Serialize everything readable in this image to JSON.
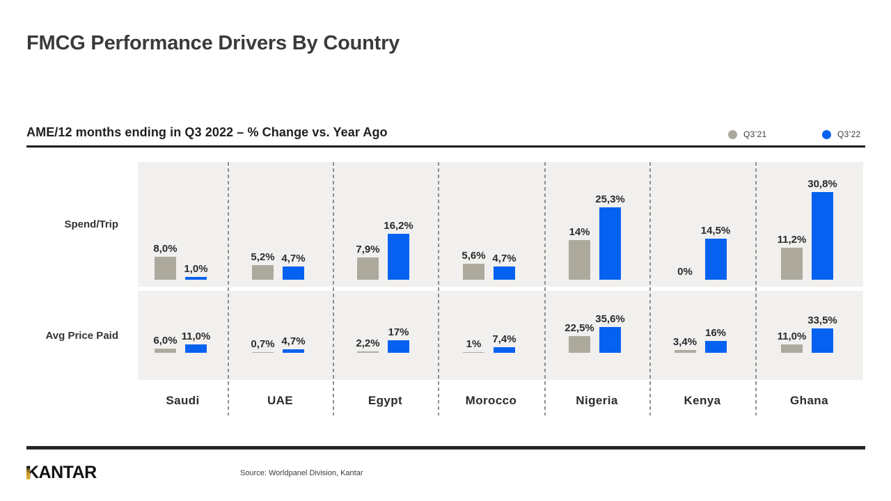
{
  "title": "FMCG Performance Drivers By Country",
  "subtitle": "AME/12 months ending in Q3 2022 – % Change vs. Year Ago",
  "legend": {
    "position": "top-right",
    "items": [
      {
        "name": "Q3’21",
        "color": "#aba89d"
      },
      {
        "name": "Q3’22",
        "color": "#0561f0"
      }
    ]
  },
  "chart_data": {
    "type": "bar",
    "title": "AME/12 months ending in Q3 2022 – % Change vs. Year Ago",
    "unit": "% change vs. year ago",
    "categories": [
      "Saudi",
      "UAE",
      "Egypt",
      "Morocco",
      "Nigeria",
      "Kenya",
      "Ghana"
    ],
    "grid": "dashed-column-separators",
    "legend_position": "top-right",
    "panels": [
      {
        "row_label": "Spend/Trip",
        "series": [
          {
            "name": "Q3’21",
            "color": "#adaa9d",
            "values": [
              8.0,
              5.2,
              7.9,
              5.6,
              14,
              0,
              11.2
            ],
            "value_labels": [
              "8,0%",
              "5,2%",
              "7,9%",
              "5,6%",
              "14%",
              "0%",
              "11,2%"
            ]
          },
          {
            "name": "Q3’22",
            "color": "#0561f0",
            "values": [
              1.0,
              4.7,
              16.2,
              4.7,
              25.3,
              14.5,
              30.8
            ],
            "value_labels": [
              "1,0%",
              "4,7%",
              "16,2%",
              "4,7%",
              "25,3%",
              "14,5%",
              "30,8%"
            ]
          }
        ]
      },
      {
        "row_label": "Avg Price Paid",
        "series": [
          {
            "name": "Q3’21",
            "color": "#adaa9d",
            "values": [
              6.0,
              0.7,
              2.2,
              1,
              22.5,
              3.4,
              11.0
            ],
            "value_labels": [
              "6,0%",
              "0,7%",
              "2,2%",
              "1%",
              "22,5%",
              "3,4%",
              "11,0%"
            ]
          },
          {
            "name": "Q3’22",
            "color": "#0561f0",
            "values": [
              11.0,
              4.7,
              17,
              7.4,
              35.6,
              16,
              33.5
            ],
            "value_labels": [
              "11,0%",
              "4,7%",
              "17%",
              "7,4%",
              "35,6%",
              "16%",
              "33,5%"
            ]
          }
        ]
      }
    ]
  },
  "footer": {
    "logo_text": "KANTAR",
    "source": "Source: Worldpanel Division, Kantar"
  }
}
